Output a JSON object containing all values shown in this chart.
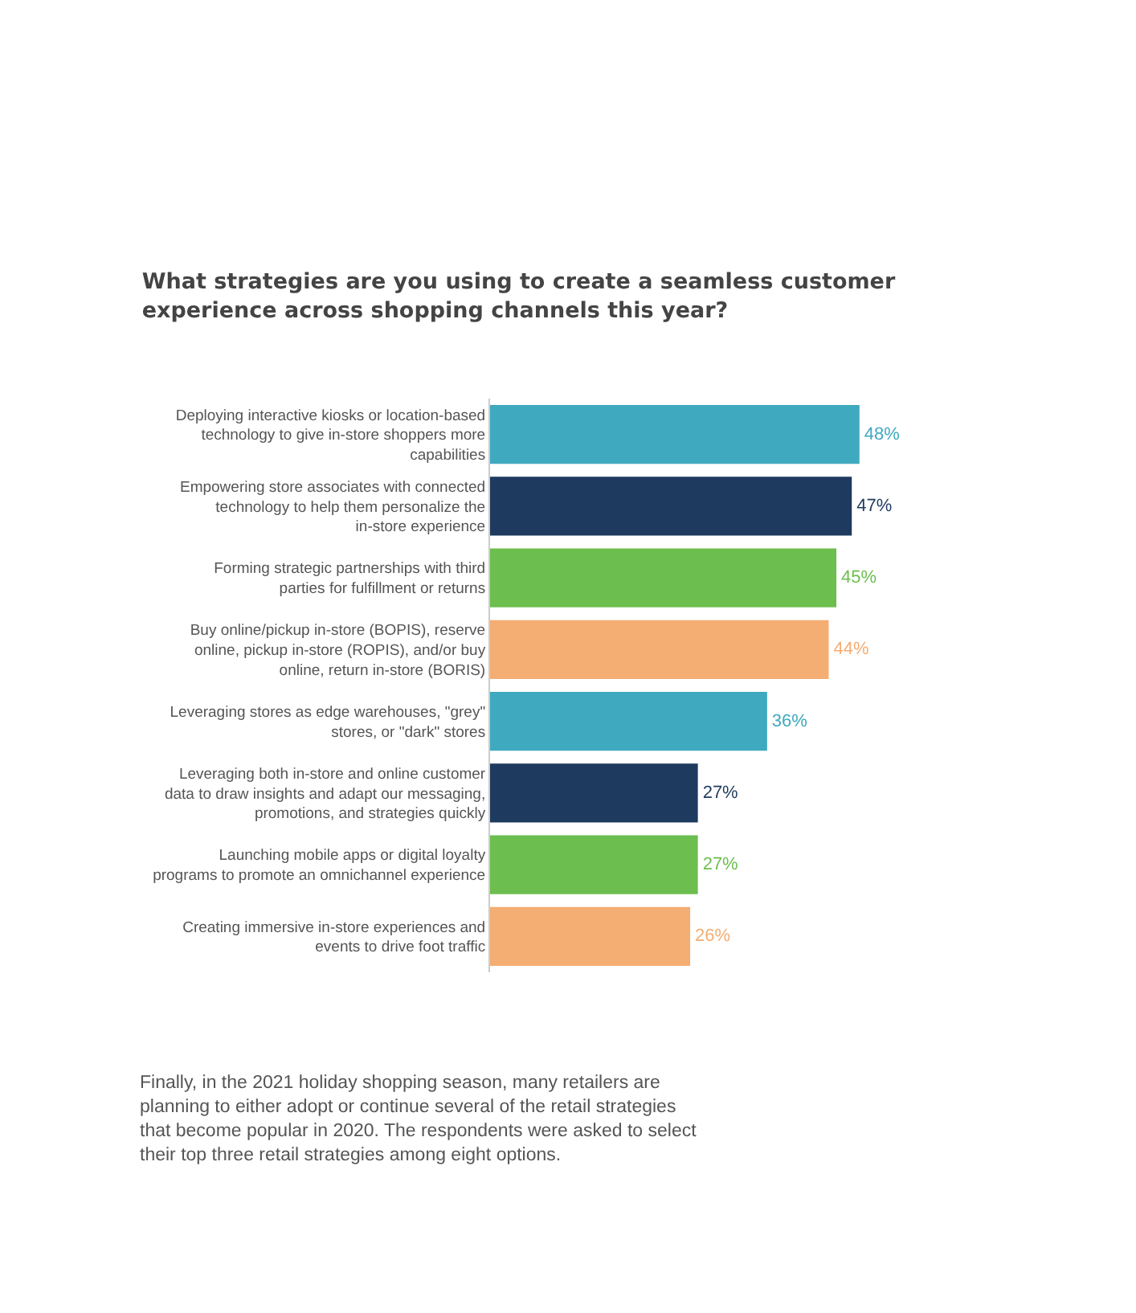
{
  "chart_data": {
    "type": "bar",
    "orientation": "horizontal",
    "title": "What strategies are you using to create a seamless customer experience across shopping channels this year?",
    "categories": [
      "Deploying interactive kiosks or location-based technology to give in-store shoppers more capabilities",
      "Empowering store associates with connected technology to help them personalize the in-store experience",
      "Forming strategic partnerships with third parties for fulfillment or returns",
      "Buy online/pickup in-store (BOPIS), reserve online, pickup in-store (ROPIS), and/or buy online, return in-store (BORIS)",
      "Leveraging stores as edge warehouses, \"grey\" stores, or \"dark\" stores",
      "Leveraging both in-store and online customer data to draw insights and adapt our messaging, promotions, and strategies quickly",
      "Launching mobile apps or digital loyalty programs to promote an omnichannel experience",
      "Creating immersive in-store experiences and events to drive foot traffic"
    ],
    "values": [
      48,
      47,
      45,
      44,
      36,
      27,
      27,
      26
    ],
    "colors": [
      "#3fa9bf",
      "#1f3a5f",
      "#6cbf4f",
      "#f4ad72",
      "#3fa9bf",
      "#1f3a5f",
      "#6cbf4f",
      "#f4ad72"
    ],
    "value_labels": [
      "48%",
      "47%",
      "45%",
      "44%",
      "36%",
      "27%",
      "27%",
      "26%"
    ],
    "tick_labels": "y",
    "annotations": [
      "Finally, in the 2021 holiday shopping season, many retailers are planning to either adopt or continue several of the retail strategies that become popular in 2020. The respondents were asked to select their top three retail strategies among eight options."
    ]
  }
}
